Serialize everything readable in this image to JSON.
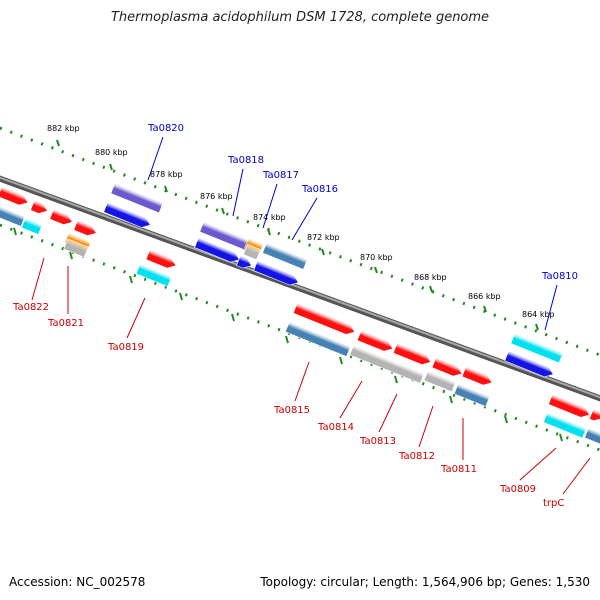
{
  "title": "Thermoplasma acidophilum DSM 1728, complete genome",
  "footer": {
    "accession": "Accession: NC_002578",
    "topology": "Topology: circular; Length: 1,564,906 bp; Genes: 1,530"
  },
  "colors": {
    "backbone": "#808080",
    "ruler": "#1f8a1f",
    "label_top": "#0000cc",
    "label_bottom": "#cc0000",
    "red": "#ff1010",
    "blue": "#1414e6",
    "violet": "#6a5acd",
    "cyan": "#00e0f0",
    "steel": "#4682b4",
    "gray": "#b4b4b4",
    "orange": "#ff8c00"
  },
  "ruler_ticks": [
    "882 kbp",
    "880 kbp",
    "878 kbp",
    "876 kbp",
    "874 kbp",
    "872 kbp",
    "870 kbp",
    "868 kbp",
    "866 kbp",
    "864 kbp"
  ],
  "genes_top": [
    "Ta0820",
    "Ta0818",
    "Ta0817",
    "Ta0816",
    "Ta0810"
  ],
  "genes_bottom": [
    "Ta0822",
    "Ta0821",
    "Ta0819",
    "Ta0815",
    "Ta0814",
    "Ta0813",
    "Ta0812",
    "Ta0811",
    "Ta0809",
    "trpC"
  ]
}
